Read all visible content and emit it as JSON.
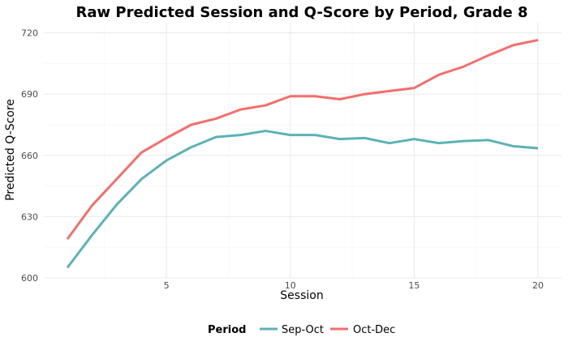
{
  "chart_data": {
    "type": "line",
    "title": "Raw Predicted Session and Q-Score by Period, Grade 8",
    "xlabel": "Session",
    "ylabel": "Predicted Q-Score",
    "xlim": [
      0.05,
      20.95
    ],
    "ylim": [
      600,
      725
    ],
    "x_ticks": [
      5,
      10,
      15,
      20
    ],
    "y_ticks": [
      600,
      630,
      660,
      690,
      720
    ],
    "x_minor": [
      2.5,
      7.5,
      12.5,
      17.5
    ],
    "y_minor": [
      615,
      645,
      675,
      705
    ],
    "grid": true,
    "legend": {
      "title": "Period",
      "position": "bottom"
    },
    "x": [
      1,
      2,
      3,
      4,
      5,
      6,
      7,
      8,
      9,
      10,
      11,
      12,
      13,
      14,
      15,
      16,
      17,
      18,
      19,
      20
    ],
    "series": [
      {
        "name": "Sep-Oct",
        "color": "#5bb3b5",
        "values": [
          605,
          621,
          636,
          648.5,
          657.5,
          664,
          669,
          670,
          672,
          670,
          670,
          668,
          668.5,
          666,
          668,
          666,
          667,
          667.5,
          664.5,
          663.5
        ]
      },
      {
        "name": "Oct-Dec",
        "color": "#f46e6b",
        "values": [
          619,
          635.5,
          648.5,
          661.5,
          668.5,
          675,
          678,
          682.5,
          684.5,
          689,
          689,
          687.5,
          690,
          691.5,
          693,
          699.5,
          703.5,
          709,
          714,
          716.5
        ]
      }
    ]
  }
}
